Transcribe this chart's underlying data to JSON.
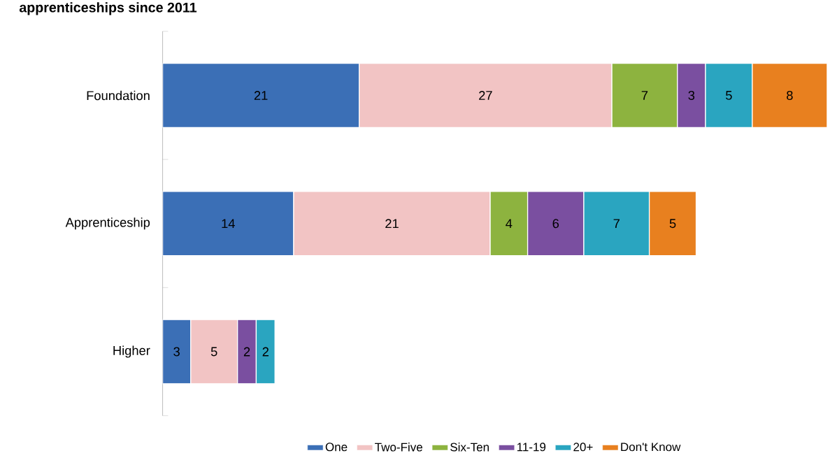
{
  "chart_data": {
    "type": "bar",
    "orientation": "horizontal",
    "stacked": true,
    "title": "apprenticeships since 2011",
    "categories": [
      "Foundation",
      "Apprenticeship",
      "Higher"
    ],
    "series": [
      {
        "name": "One",
        "color": "#3b6fb6",
        "values": [
          21,
          14,
          3
        ]
      },
      {
        "name": "Two-Five",
        "color": "#f2c4c4",
        "values": [
          27,
          21,
          5
        ]
      },
      {
        "name": "Six-Ten",
        "color": "#8db33f",
        "values": [
          7,
          4,
          null
        ]
      },
      {
        "name": "11-19",
        "color": "#7a4fa0",
        "values": [
          3,
          6,
          2
        ]
      },
      {
        "name": "20+",
        "color": "#2aa5c0",
        "values": [
          5,
          7,
          2
        ]
      },
      {
        "name": "Don't Know",
        "color": "#e8801f",
        "values": [
          8,
          5,
          null
        ]
      }
    ],
    "data_labels": true,
    "legend": "bottom",
    "tick_labels": "y"
  }
}
